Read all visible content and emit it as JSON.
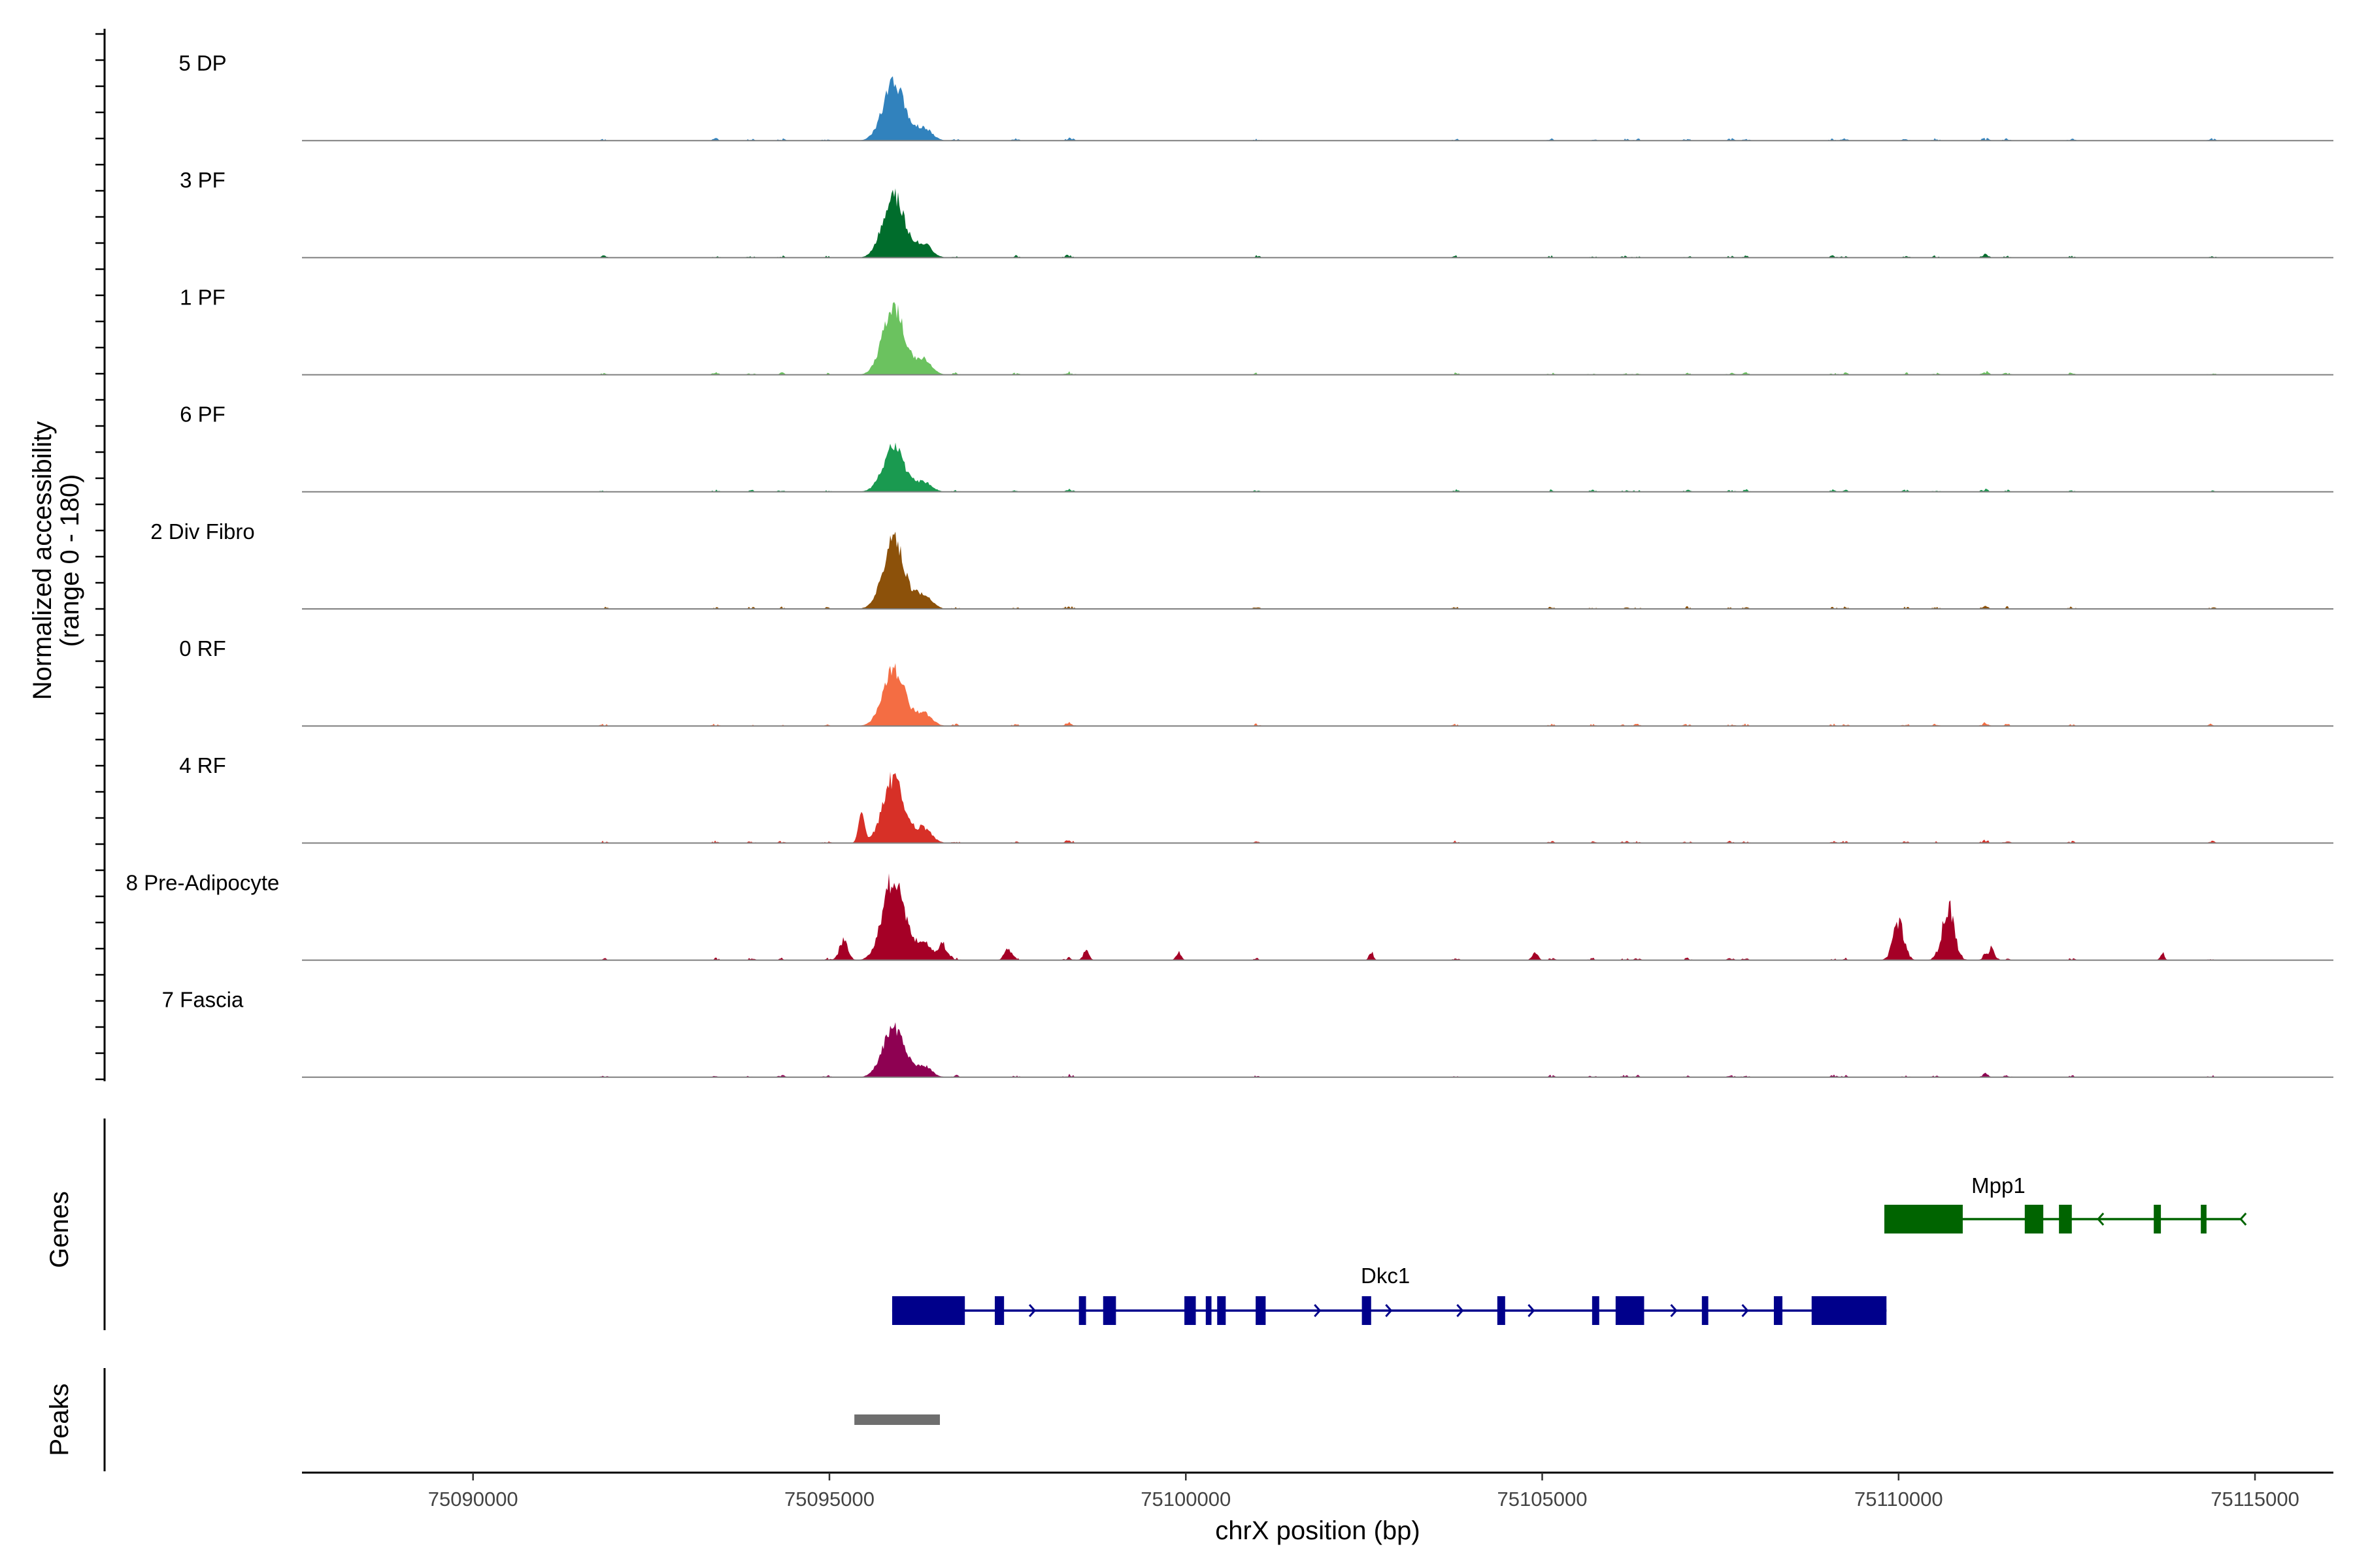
{
  "chart_data": {
    "type": "coverage-track",
    "y_axis_title": [
      "Normalized accessibility",
      "(range 0 - 180)"
    ],
    "y_range": [
      0,
      180
    ],
    "x_axis_title": "chrX position (bp)",
    "x_range": [
      75087600,
      75116100
    ],
    "x_ticks": [
      75090000,
      75095000,
      75100000,
      75105000,
      75110000,
      75115000
    ],
    "tracks": [
      {
        "name": "5 DP",
        "color": "#3182bd",
        "peak_height": 0.62,
        "mode": "single"
      },
      {
        "name": "3 PF",
        "color": "#006d2c",
        "peak_height": 0.66,
        "mode": "single"
      },
      {
        "name": "1 PF",
        "color": "#6bc25f",
        "peak_height": 0.72,
        "mode": "single"
      },
      {
        "name": "6 PF",
        "color": "#1a9a50",
        "peak_height": 0.47,
        "mode": "single"
      },
      {
        "name": "2 Div Fibro",
        "color": "#8c510a",
        "peak_height": 0.72,
        "mode": "single"
      },
      {
        "name": "0 RF",
        "color": "#f46d43",
        "peak_height": 0.62,
        "mode": "single"
      },
      {
        "name": "4 RF",
        "color": "#d73027",
        "peak_height": 0.69,
        "mode": "double"
      },
      {
        "name": "8 Pre-Adipocyte",
        "color": "#a50026",
        "peak_height": 0.88,
        "mode": "broad"
      },
      {
        "name": "7 Fascia",
        "color": "#8e0152",
        "peak_height": 0.53,
        "mode": "single"
      }
    ],
    "genes_title": "Genes",
    "genes": [
      {
        "name": "Mpp1",
        "color": "#006400",
        "start": 75109800,
        "end": 75114800,
        "strand": "-",
        "row": 1,
        "exons": [
          [
            75109800,
            75110900
          ],
          [
            75111770,
            75112030
          ],
          [
            75112250,
            75112430
          ],
          [
            75113580,
            75113680
          ],
          [
            75114240,
            75114320
          ]
        ]
      },
      {
        "name": "Dkc1",
        "color": "#00008b",
        "start": 75095880,
        "end": 75109830,
        "strand": "+",
        "row": 2,
        "exons": [
          [
            75095880,
            75096900
          ],
          [
            75097320,
            75097450
          ],
          [
            75098500,
            75098600
          ],
          [
            75098840,
            75099020
          ],
          [
            75099980,
            75100140
          ],
          [
            75100280,
            75100360
          ],
          [
            75100440,
            75100560
          ],
          [
            75100980,
            75101120
          ],
          [
            75102470,
            75102600
          ],
          [
            75104370,
            75104480
          ],
          [
            75105700,
            75105800
          ],
          [
            75106030,
            75106430
          ],
          [
            75107240,
            75107330
          ],
          [
            75108250,
            75108370
          ],
          [
            75108780,
            75109830
          ]
        ]
      }
    ],
    "peaks_title": "Peaks",
    "peaks": [
      [
        75095350,
        75096550
      ]
    ]
  }
}
